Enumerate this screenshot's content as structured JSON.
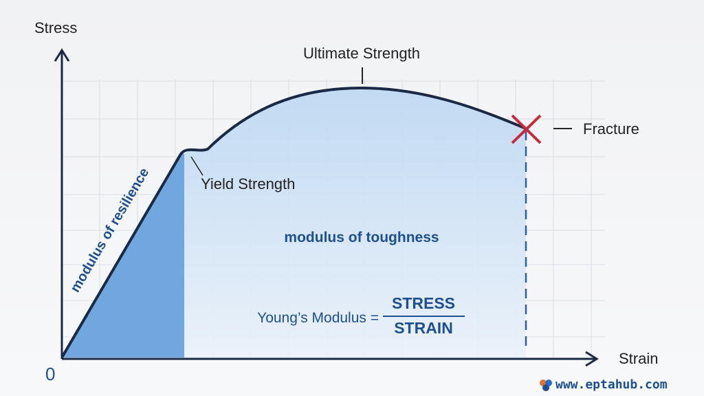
{
  "axes": {
    "y_label": "Stress",
    "x_label": "Strain",
    "origin": "0"
  },
  "points": {
    "ultimate": "Ultimate Strength",
    "fracture": "Fracture",
    "yield": "Yield Strength"
  },
  "regions": {
    "resilience": "modulus of resilience",
    "toughness": "modulus of toughness"
  },
  "formula": {
    "left": "Young’s Modulus =",
    "numerator": "STRESS",
    "denominator": "STRAIN"
  },
  "watermark": "www.eptahub.com"
}
